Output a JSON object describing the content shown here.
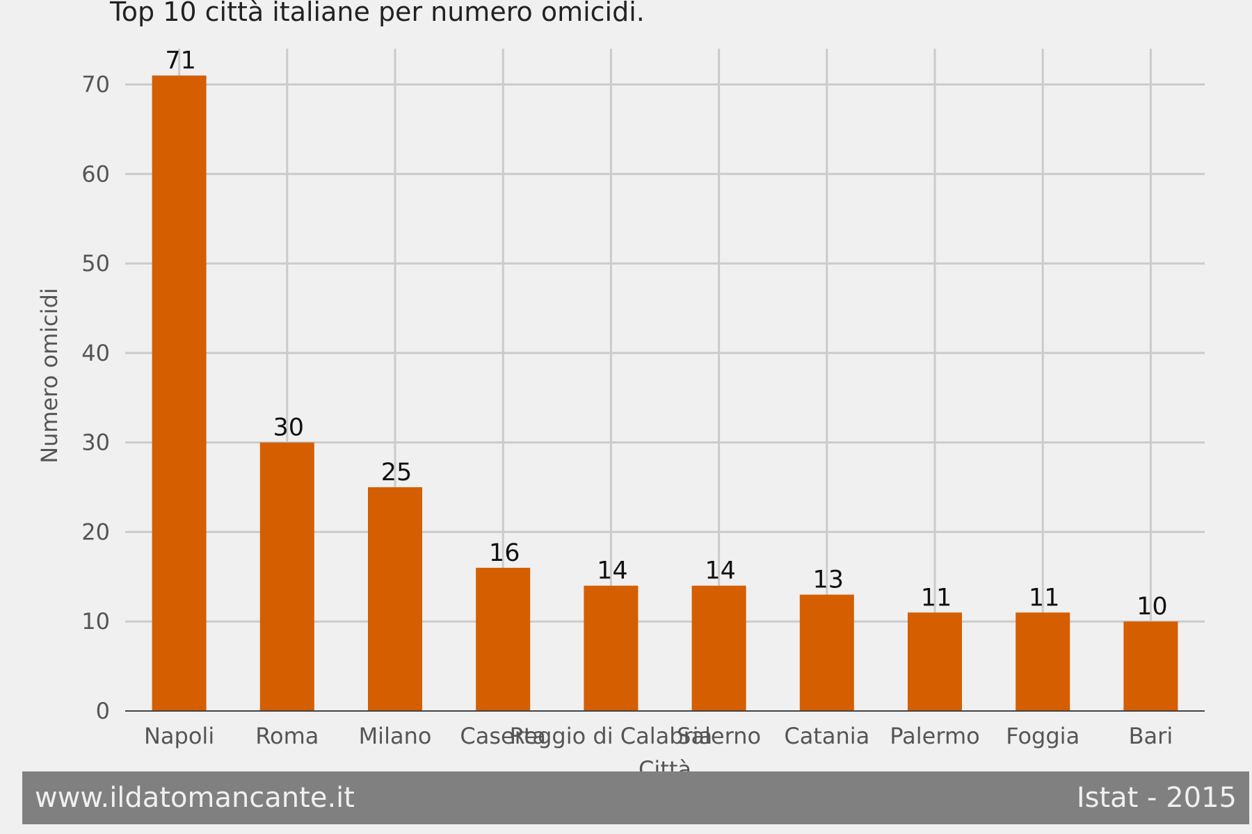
{
  "chart_data": {
    "type": "bar",
    "title": "Top 10 città italiane per numero omicidi.",
    "xlabel": "Città",
    "ylabel": "Numero omicidi",
    "categories": [
      "Napoli",
      "Roma",
      "Milano",
      "Caserta",
      "Reggio di Calabria",
      "Salerno",
      "Catania",
      "Palermo",
      "Foggia",
      "Bari"
    ],
    "values": [
      71,
      30,
      25,
      16,
      14,
      14,
      13,
      11,
      11,
      10
    ],
    "ylim": [
      0,
      74
    ],
    "yticks": [
      0,
      10,
      20,
      30,
      40,
      50,
      60,
      70
    ],
    "grid": true,
    "bar_color": "#d55e00",
    "background_color": "#f0f0f0",
    "grid_color": "#cbcbcb"
  },
  "footer": {
    "source_site": "www.ildatomancante.it",
    "source_data": "Istat - 2015",
    "background_color": "#808080"
  }
}
